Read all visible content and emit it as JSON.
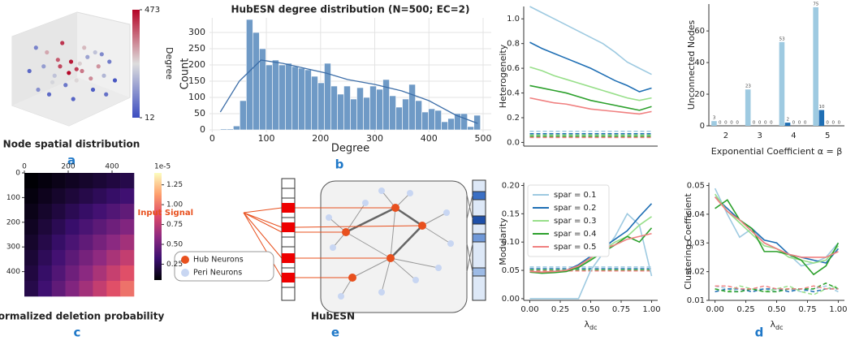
{
  "chart_data": [
    {
      "type": "histogram",
      "title": "HubESN degree distribution (N=500; EC=2)",
      "xlabel": "Degree",
      "ylabel": "Count",
      "color": "#6f9ac6",
      "grid": true,
      "bins": [
        15,
        27,
        39,
        51,
        63,
        75,
        87,
        99,
        111,
        123,
        135,
        147,
        159,
        171,
        183,
        195,
        207,
        219,
        231,
        243,
        255,
        267,
        279,
        291,
        303,
        315,
        327,
        339,
        351,
        363,
        375,
        387,
        399,
        411,
        423,
        435,
        447,
        459,
        471,
        483,
        495
      ],
      "values": [
        3,
        3,
        12,
        90,
        340,
        300,
        250,
        200,
        215,
        200,
        205,
        195,
        190,
        185,
        165,
        145,
        205,
        135,
        110,
        135,
        95,
        130,
        100,
        135,
        125,
        155,
        105,
        70,
        95,
        140,
        90,
        55,
        65,
        60,
        25,
        35,
        50,
        50,
        10,
        45
      ],
      "kde": {
        "x": [
          15,
          50,
          90,
          130,
          170,
          210,
          250,
          300,
          350,
          400,
          450,
          490
        ],
        "values": [
          55,
          150,
          215,
          205,
          190,
          175,
          155,
          140,
          120,
          90,
          45,
          20
        ]
      },
      "xlim": [
        -5,
        515
      ],
      "ylim": [
        0,
        345
      ],
      "xticks": [
        0,
        100,
        200,
        300,
        400,
        500
      ],
      "yticks": [
        0,
        50,
        100,
        150,
        200,
        250,
        300
      ]
    },
    {
      "type": "line",
      "ylabel": "Heterogeneity",
      "x": [
        0,
        0.1,
        0.2,
        0.3,
        0.4,
        0.5,
        0.6,
        0.7,
        0.8,
        0.9,
        1.0
      ],
      "xlim": [
        -0.05,
        1.05
      ],
      "ylim": [
        -0.03,
        1.1
      ],
      "yticks": [
        {
          "value": 0,
          "label": "0.0"
        },
        {
          "value": 0.2,
          "label": "0.2"
        },
        {
          "value": 0.4,
          "label": "0.4"
        },
        {
          "value": 0.6,
          "label": "0.6"
        },
        {
          "value": 0.8,
          "label": "0.8"
        },
        {
          "value": 1,
          "label": "1.0"
        }
      ],
      "series": [
        {
          "color": "#9ecae1",
          "values": [
            1.1,
            1.05,
            1.0,
            0.95,
            0.9,
            0.85,
            0.8,
            0.73,
            0.65,
            0.6,
            0.55
          ]
        },
        {
          "color": "#1f6fb4",
          "values": [
            0.81,
            0.76,
            0.72,
            0.68,
            0.64,
            0.6,
            0.55,
            0.5,
            0.46,
            0.41,
            0.44
          ]
        },
        {
          "color": "#98df8a",
          "values": [
            0.61,
            0.58,
            0.54,
            0.51,
            0.48,
            0.45,
            0.42,
            0.39,
            0.36,
            0.34,
            0.36
          ]
        },
        {
          "color": "#2ca02c",
          "values": [
            0.46,
            0.44,
            0.42,
            0.4,
            0.37,
            0.34,
            0.32,
            0.3,
            0.28,
            0.26,
            0.29
          ]
        },
        {
          "color": "#f08080",
          "values": [
            0.36,
            0.34,
            0.32,
            0.31,
            0.29,
            0.27,
            0.26,
            0.25,
            0.24,
            0.23,
            0.25
          ]
        }
      ],
      "baselines": [
        {
          "color": "#9ecae1",
          "values": [
            0.09,
            0.09,
            0.09,
            0.09,
            0.09,
            0.09,
            0.09,
            0.09,
            0.09,
            0.09,
            0.09
          ]
        },
        {
          "color": "#1f6fb4",
          "values": [
            0.07,
            0.07,
            0.07,
            0.07,
            0.07,
            0.07,
            0.07,
            0.07,
            0.07,
            0.07,
            0.07
          ]
        },
        {
          "color": "#98df8a",
          "values": [
            0.06,
            0.06,
            0.06,
            0.06,
            0.06,
            0.06,
            0.06,
            0.06,
            0.06,
            0.06,
            0.06
          ]
        },
        {
          "color": "#2ca02c",
          "values": [
            0.05,
            0.05,
            0.05,
            0.05,
            0.05,
            0.05,
            0.05,
            0.05,
            0.05,
            0.05,
            0.05
          ]
        },
        {
          "color": "#f08080",
          "values": [
            0.04,
            0.04,
            0.04,
            0.04,
            0.04,
            0.04,
            0.04,
            0.04,
            0.04,
            0.04,
            0.04
          ]
        }
      ]
    },
    {
      "type": "bar",
      "ylabel": "Unconnected Nodes",
      "xlabel": "Exponential Coefficient α = β",
      "categories": [
        "2",
        "3",
        "4",
        "5"
      ],
      "ylim": [
        0,
        77
      ],
      "yticks": [
        0,
        20,
        40,
        60
      ],
      "series": [
        {
          "color": "#9ecae1",
          "values": [
            3,
            23,
            53,
            75
          ]
        },
        {
          "color": "#1f6fb4",
          "values": [
            0,
            0,
            2,
            10
          ]
        },
        {
          "color": "#98df8a",
          "values": [
            0,
            0,
            0,
            0
          ]
        },
        {
          "color": "#2ca02c",
          "values": [
            0,
            0,
            0,
            0
          ]
        },
        {
          "color": "#f08080",
          "values": [
            0,
            0,
            0,
            0
          ]
        }
      ]
    },
    {
      "type": "line",
      "ylabel": "Modularity",
      "xlabel": "λ",
      "xlabel_sub": "dc",
      "legend": "upper left",
      "x": [
        0,
        0.1,
        0.2,
        0.3,
        0.4,
        0.5,
        0.6,
        0.7,
        0.8,
        0.9,
        1.0
      ],
      "xlim": [
        -0.05,
        1.05
      ],
      "ylim": [
        -0.003,
        0.205
      ],
      "xticks": [
        {
          "value": 0,
          "label": "0.00"
        },
        {
          "value": 0.25,
          "label": "0.25"
        },
        {
          "value": 0.5,
          "label": "0.50"
        },
        {
          "value": 0.75,
          "label": "0.75"
        },
        {
          "value": 1,
          "label": "1.00"
        }
      ],
      "yticks": [
        {
          "value": 0,
          "label": "0.00"
        },
        {
          "value": 0.05,
          "label": "0.05"
        },
        {
          "value": 0.1,
          "label": "0.10"
        },
        {
          "value": 0.15,
          "label": "0.15"
        },
        {
          "value": 0.2,
          "label": "0.20"
        }
      ],
      "series": [
        {
          "name": "spar = 0.1",
          "color": "#9ecae1",
          "values": [
            0,
            0,
            0,
            0,
            0,
            0.05,
            0.08,
            0.11,
            0.15,
            0.13,
            0.04
          ]
        },
        {
          "name": "spar = 0.2",
          "color": "#1f6fb4",
          "values": [
            0.048,
            0.046,
            0.048,
            0.05,
            0.06,
            0.075,
            0.09,
            0.105,
            0.12,
            0.145,
            0.168
          ]
        },
        {
          "name": "spar = 0.3",
          "color": "#98df8a",
          "values": [
            0.047,
            0.046,
            0.047,
            0.05,
            0.055,
            0.07,
            0.085,
            0.1,
            0.11,
            0.13,
            0.145
          ]
        },
        {
          "name": "spar = 0.4",
          "color": "#2ca02c",
          "values": [
            0.047,
            0.045,
            0.046,
            0.048,
            0.055,
            0.068,
            0.082,
            0.095,
            0.11,
            0.1,
            0.125
          ]
        },
        {
          "name": "spar = 0.5",
          "color": "#f08080",
          "values": [
            0.048,
            0.047,
            0.048,
            0.05,
            0.058,
            0.072,
            0.088,
            0.095,
            0.105,
            0.11,
            0.115
          ]
        }
      ],
      "baselines": [
        {
          "color": "#9ecae1",
          "values": [
            0.056,
            0.056,
            0.056,
            0.056,
            0.056,
            0.056,
            0.056,
            0.056,
            0.056,
            0.056,
            0.056
          ]
        },
        {
          "color": "#1f6fb4",
          "values": [
            0.053,
            0.053,
            0.053,
            0.053,
            0.053,
            0.053,
            0.053,
            0.053,
            0.053,
            0.053,
            0.053
          ]
        },
        {
          "color": "#98df8a",
          "values": [
            0.051,
            0.051,
            0.051,
            0.051,
            0.051,
            0.051,
            0.051,
            0.051,
            0.051,
            0.051,
            0.051
          ]
        },
        {
          "color": "#2ca02c",
          "values": [
            0.05,
            0.05,
            0.05,
            0.05,
            0.05,
            0.05,
            0.05,
            0.05,
            0.05,
            0.05,
            0.05
          ]
        },
        {
          "color": "#f08080",
          "values": [
            0.049,
            0.049,
            0.049,
            0.049,
            0.049,
            0.049,
            0.049,
            0.049,
            0.049,
            0.049,
            0.049
          ]
        }
      ]
    },
    {
      "type": "line",
      "ylabel": "Clustering Coefficient",
      "xlabel": "λ",
      "xlabel_sub": "dc",
      "x": [
        0,
        0.1,
        0.2,
        0.3,
        0.4,
        0.5,
        0.6,
        0.7,
        0.8,
        0.9,
        1.0
      ],
      "xlim": [
        -0.05,
        1.05
      ],
      "ylim": [
        0.01,
        0.051
      ],
      "xticks": [
        {
          "value": 0,
          "label": "0.00"
        },
        {
          "value": 0.25,
          "label": "0.25"
        },
        {
          "value": 0.5,
          "label": "0.50"
        },
        {
          "value": 0.75,
          "label": "0.75"
        },
        {
          "value": 1,
          "label": "1.00"
        }
      ],
      "yticks": [
        0.01,
        0.02,
        0.03,
        0.04,
        0.05
      ],
      "series": [
        {
          "color": "#9ecae1",
          "values": [
            0.049,
            0.04,
            0.032,
            0.035,
            0.03,
            0.028,
            0.026,
            0.022,
            0.023,
            0.025,
            0.03
          ]
        },
        {
          "color": "#1f6fb4",
          "values": [
            0.046,
            0.042,
            0.038,
            0.035,
            0.031,
            0.03,
            0.026,
            0.025,
            0.024,
            0.023,
            0.028
          ]
        },
        {
          "color": "#98df8a",
          "values": [
            0.047,
            0.041,
            0.037,
            0.033,
            0.029,
            0.028,
            0.025,
            0.024,
            0.023,
            0.024,
            0.029
          ]
        },
        {
          "color": "#2ca02c",
          "values": [
            0.042,
            0.045,
            0.038,
            0.035,
            0.027,
            0.027,
            0.026,
            0.024,
            0.019,
            0.022,
            0.03
          ]
        },
        {
          "color": "#f08080",
          "values": [
            0.046,
            0.041,
            0.038,
            0.034,
            0.03,
            0.028,
            0.026,
            0.025,
            0.025,
            0.025,
            0.027
          ]
        }
      ],
      "baselines": [
        {
          "color": "#9ecae1",
          "values": [
            0.015,
            0.014,
            0.013,
            0.014,
            0.014,
            0.013,
            0.014,
            0.013,
            0.014,
            0.015,
            0.013
          ]
        },
        {
          "color": "#1f6fb4",
          "values": [
            0.013,
            0.014,
            0.014,
            0.013,
            0.014,
            0.014,
            0.013,
            0.014,
            0.013,
            0.014,
            0.014
          ]
        },
        {
          "color": "#98df8a",
          "values": [
            0.014,
            0.013,
            0.015,
            0.014,
            0.013,
            0.014,
            0.015,
            0.013,
            0.012,
            0.014,
            0.015
          ]
        },
        {
          "color": "#2ca02c",
          "values": [
            0.014,
            0.013,
            0.013,
            0.014,
            0.013,
            0.013,
            0.014,
            0.014,
            0.014,
            0.016,
            0.014
          ]
        },
        {
          "color": "#f08080",
          "values": [
            0.015,
            0.015,
            0.014,
            0.014,
            0.015,
            0.014,
            0.014,
            0.014,
            0.015,
            0.014,
            0.014
          ]
        }
      ]
    },
    {
      "type": "scatter",
      "caption": "Node spatial distribution",
      "colorbar_label": "Degree",
      "clim": [
        12,
        473
      ],
      "cticks": [
        12,
        473
      ],
      "x": [
        0.12,
        0.2,
        0.28,
        0.35,
        0.4,
        0.45,
        0.5,
        0.55,
        0.6,
        0.65,
        0.7,
        0.75,
        0.8,
        0.85,
        0.9,
        0.18,
        0.3,
        0.42,
        0.52,
        0.62,
        0.72,
        0.82,
        0.25,
        0.38,
        0.48,
        0.58,
        0.68,
        0.78,
        0.33,
        0.55
      ],
      "y": [
        0.5,
        0.3,
        0.7,
        0.45,
        0.55,
        0.35,
        0.6,
        0.4,
        0.5,
        0.65,
        0.3,
        0.55,
        0.45,
        0.6,
        0.4,
        0.75,
        0.25,
        0.8,
        0.2,
        0.75,
        0.7,
        0.25,
        0.55,
        0.62,
        0.48,
        0.58,
        0.42,
        0.68,
        0.38,
        0.52
      ],
      "values": [
        60,
        120,
        300,
        200,
        400,
        80,
        450,
        250,
        350,
        150,
        40,
        320,
        180,
        90,
        30,
        100,
        60,
        420,
        50,
        280,
        200,
        70,
        140,
        380,
        470,
        260,
        330,
        110,
        230,
        410
      ]
    },
    {
      "type": "heatmap",
      "caption": "Normalized deletion probability",
      "scale_label": "1e-5",
      "xlim": [
        0,
        500
      ],
      "ylim": [
        0,
        500
      ],
      "xticks": [
        0,
        200,
        400
      ],
      "yticks": [
        0,
        100,
        200,
        300,
        400
      ],
      "clim": [
        0.05,
        1.4
      ],
      "cticks": [
        {
          "value": 0.25,
          "label": "0.25"
        },
        {
          "value": 0.5,
          "label": "0.50"
        },
        {
          "value": 0.75,
          "label": "0.75"
        },
        {
          "value": 1,
          "label": "1.00"
        },
        {
          "value": 1.25,
          "label": "1.25"
        }
      ],
      "values": [
        [
          0.05,
          0.075,
          0.1,
          0.125,
          0.15,
          0.175,
          0.2,
          0.225
        ],
        [
          0.075,
          0.112,
          0.149,
          0.186,
          0.223,
          0.26,
          0.297,
          0.334
        ],
        [
          0.1,
          0.149,
          0.198,
          0.247,
          0.296,
          0.345,
          0.394,
          0.443
        ],
        [
          0.125,
          0.186,
          0.247,
          0.308,
          0.369,
          0.43,
          0.491,
          0.552
        ],
        [
          0.15,
          0.223,
          0.296,
          0.369,
          0.442,
          0.515,
          0.588,
          0.661
        ],
        [
          0.175,
          0.26,
          0.345,
          0.43,
          0.515,
          0.6,
          0.685,
          0.77
        ],
        [
          0.2,
          0.297,
          0.394,
          0.491,
          0.588,
          0.685,
          0.782,
          0.879
        ],
        [
          0.225,
          0.334,
          0.443,
          0.552,
          0.661,
          0.77,
          0.879,
          0.988
        ]
      ]
    }
  ],
  "diagram": {
    "input_label": "Input Signal",
    "legend": [
      "Hub Neurons",
      "Peri Neurons"
    ],
    "caption": "HubESN"
  },
  "panel_letters": [
    "a",
    "b",
    "c",
    "d",
    "e"
  ]
}
